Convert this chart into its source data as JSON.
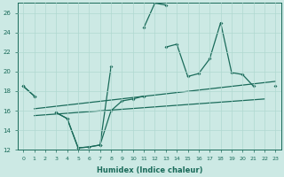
{
  "title": "",
  "xlabel": "Humidex (Indice chaleur)",
  "x": [
    0,
    1,
    2,
    3,
    4,
    5,
    6,
    7,
    8,
    9,
    10,
    11,
    12,
    13,
    14,
    15,
    16,
    17,
    18,
    19,
    20,
    21,
    22,
    23
  ],
  "line_upper": [
    18.5,
    17.5,
    null,
    15.8,
    15.2,
    12.2,
    12.3,
    12.5,
    20.5,
    null,
    null,
    24.5,
    27.0,
    26.8,
    null,
    null,
    null,
    null,
    null,
    null,
    null,
    null,
    null,
    null
  ],
  "line_main": [
    18.5,
    17.5,
    null,
    15.8,
    15.2,
    12.2,
    12.3,
    12.5,
    16.0,
    17.0,
    17.2,
    17.5,
    null,
    22.5,
    22.8,
    19.5,
    19.8,
    21.3,
    25.0,
    19.9,
    19.7,
    18.5,
    null,
    18.5
  ],
  "trend1_x": [
    1,
    23
  ],
  "trend1_y": [
    16.2,
    19.0
  ],
  "trend2_x": [
    1,
    22
  ],
  "trend2_y": [
    15.5,
    17.2
  ],
  "ylim_min": 12,
  "ylim_max": 27,
  "xlim_min": -0.5,
  "xlim_max": 23.5,
  "bg_color": "#cce9e4",
  "grid_color": "#b0d8d0",
  "line_color": "#1a6b5a",
  "xticks": [
    0,
    1,
    2,
    3,
    4,
    5,
    6,
    7,
    8,
    9,
    10,
    11,
    12,
    13,
    14,
    15,
    16,
    17,
    18,
    19,
    20,
    21,
    22,
    23
  ],
  "yticks": [
    12,
    14,
    16,
    18,
    20,
    22,
    24,
    26
  ]
}
